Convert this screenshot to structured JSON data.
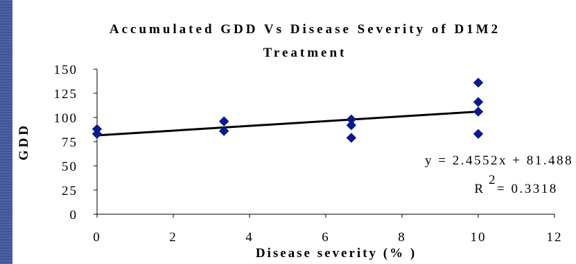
{
  "chart_data": {
    "type": "scatter",
    "title": "Accumulated GDD Vs Disease Severity of D1M2 Treatment",
    "title_lines": [
      "Accumulated GDD Vs Disease Severity of D1M2",
      "Treatment"
    ],
    "xlabel": "Disease severity (% )",
    "ylabel": "GDD",
    "xlim": [
      0,
      12
    ],
    "ylim": [
      0,
      150
    ],
    "x_ticks": [
      0,
      2,
      4,
      6,
      8,
      10,
      12
    ],
    "y_ticks": [
      0,
      25,
      50,
      75,
      100,
      125,
      150
    ],
    "x_tick_labels": [
      "0",
      "2",
      "4",
      "6",
      "8",
      "10",
      "12"
    ],
    "y_tick_labels": [
      "0",
      "25",
      "50",
      "75",
      "100",
      "125",
      "150"
    ],
    "grid": false,
    "legend": "none",
    "marker_color": "#0a1a8c",
    "series": [
      {
        "marker": "diamond",
        "x": [
          0,
          0,
          3.33,
          3.33,
          6.67,
          6.67,
          6.67,
          10,
          10,
          10,
          10
        ],
        "y": [
          83,
          88,
          86,
          96,
          79,
          92,
          98,
          83,
          106,
          116,
          136
        ]
      }
    ],
    "trendline": {
      "type": "linear",
      "slope": 2.4552,
      "intercept": 81.488,
      "equation": "y = 2.4552x + 81.488",
      "r_squared_label": "R",
      "r_squared_exponent": "2",
      "r_squared_value": "= 0.3318"
    }
  }
}
